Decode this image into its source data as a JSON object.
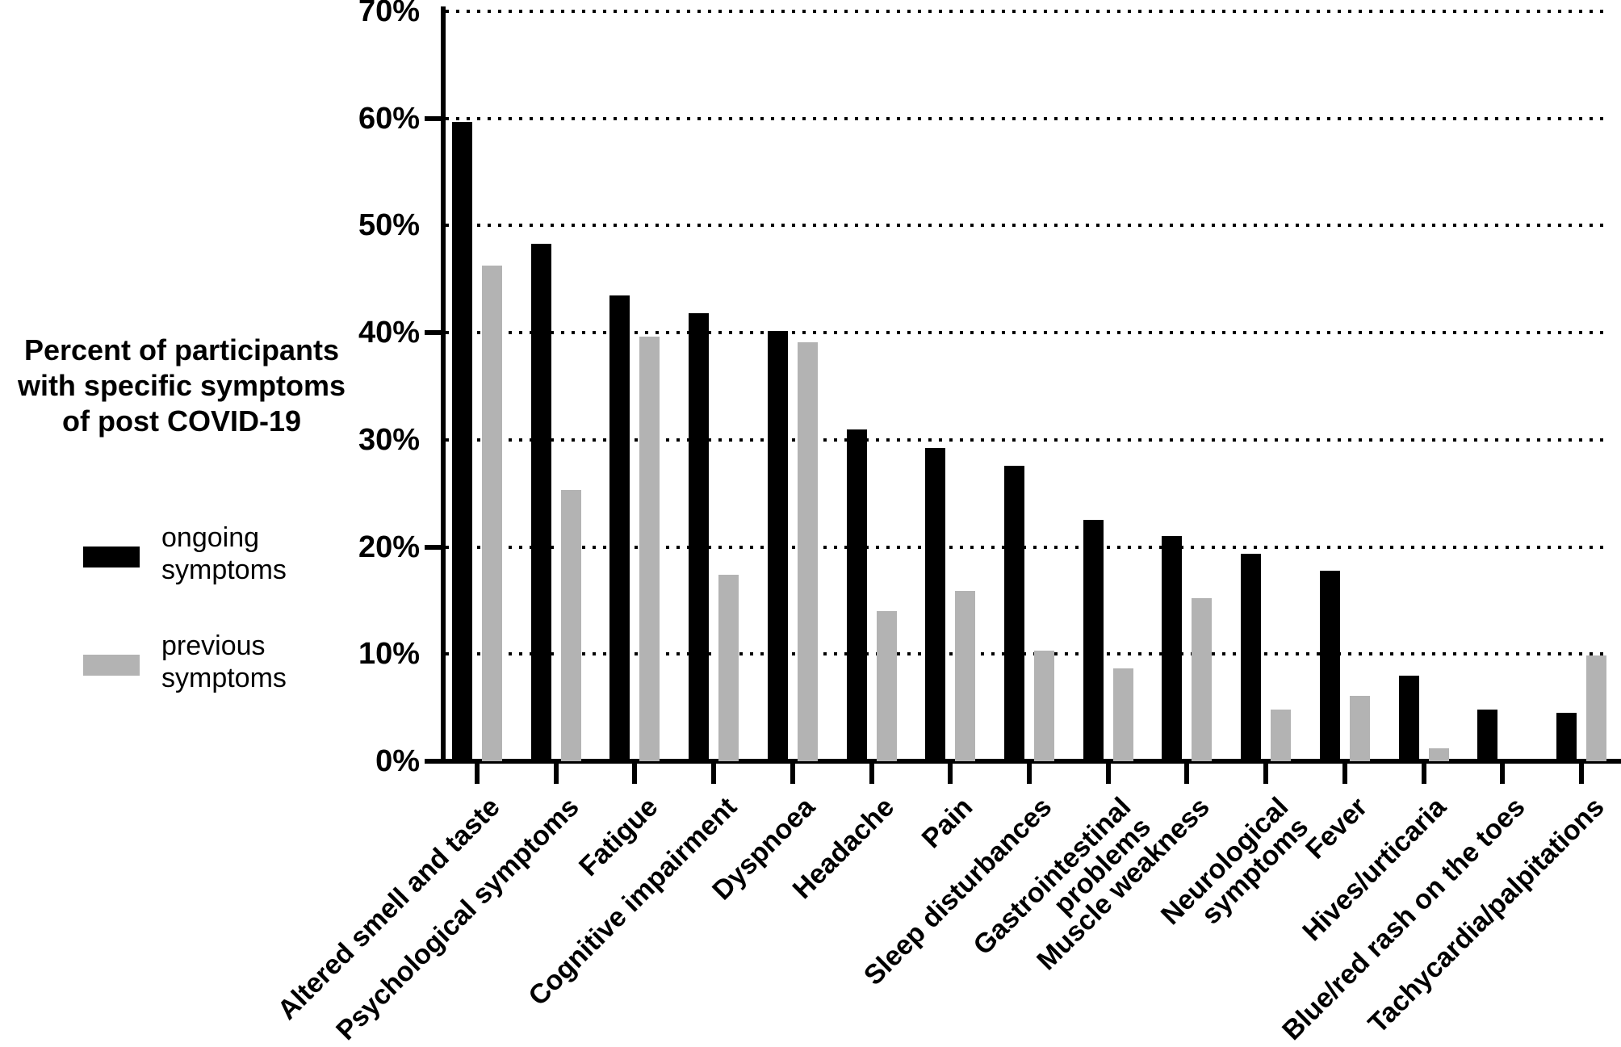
{
  "figure": {
    "axis_title": "Percent of participants\nwith specific symptoms\nof post COVID-19",
    "legend": {
      "ongoing_label": "ongoing\nsymptoms",
      "previous_label": "previous\nsymptoms"
    }
  },
  "chart_data": {
    "type": "bar",
    "title": "Percent of participants with specific symptoms of post COVID-19",
    "categories": [
      "Altered smell and taste",
      "Psychological symptoms",
      "Fatigue",
      "Cognitive impairment",
      "Dyspnoea",
      "Headache",
      "Pain",
      "Sleep disturbances",
      "Gastrointestinal\nproblems",
      "Muscle weakness",
      "Neurological\nsymptoms",
      "Fever",
      "Hives/urticaria",
      "Blue/red rash on the toes",
      "Tachycardia/palpitations"
    ],
    "series": [
      {
        "name": "ongoing symptoms",
        "color": "#000000",
        "values": [
          59.7,
          48.3,
          43.5,
          41.8,
          40.2,
          31.0,
          29.2,
          27.6,
          22.5,
          21.0,
          19.4,
          17.8,
          8.0,
          4.8,
          4.5
        ]
      },
      {
        "name": "previous symptoms",
        "color": "#b3b3b3",
        "values": [
          46.3,
          25.3,
          39.6,
          17.4,
          39.1,
          14.0,
          15.9,
          10.3,
          8.7,
          15.2,
          4.8,
          6.1,
          1.2,
          0,
          9.9
        ]
      }
    ],
    "xlabel": "",
    "ylabel": "Percent of participants with specific symptoms of post COVID-19",
    "ylim": [
      0,
      70
    ],
    "ytick_labels": [
      "0%",
      "10%",
      "20%",
      "30%",
      "40%",
      "50%",
      "60%",
      "70%"
    ],
    "ytick_marks_pct": [
      0,
      20,
      40,
      60
    ],
    "grid": "horizontal dotted",
    "legend_position": "left"
  }
}
